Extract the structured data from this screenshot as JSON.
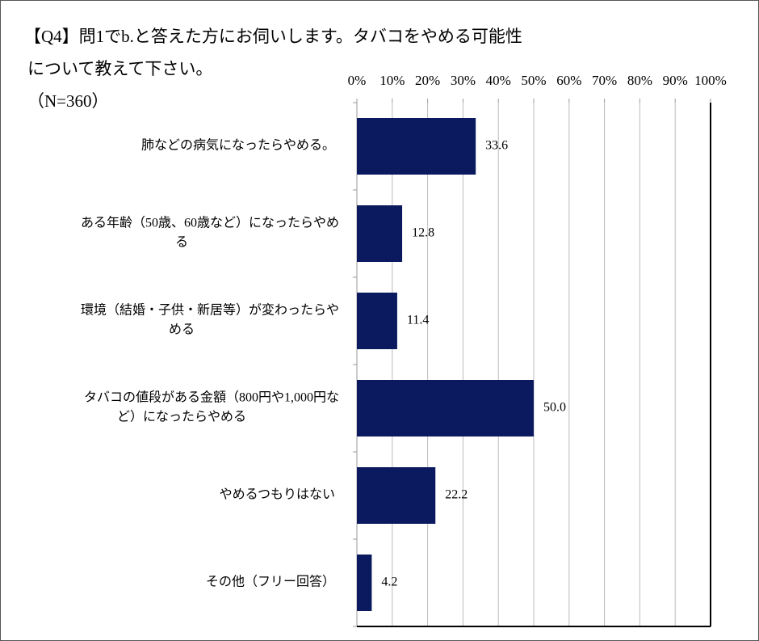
{
  "chart_data": {
    "type": "barh",
    "title": [
      "【Q4】問1でb.と答えた方にお伺いします。タバコをやめる可能性",
      "について教えて下さい。",
      "（N=360）"
    ],
    "categories": [
      [
        "肺などの病気になったらやめる。"
      ],
      [
        "ある年齢（50歳、60歳など）になったらやめ",
        "る"
      ],
      [
        "環境（結婚・子供・新居等）が変わったらや",
        "める"
      ],
      [
        "タバコの値段がある金額（800円や1,000円な",
        "ど）になったらやめる"
      ],
      [
        "やめるつもりはない"
      ],
      [
        "その他（フリー回答）"
      ]
    ],
    "values": [
      33.6,
      12.8,
      11.4,
      50.0,
      22.2,
      4.2
    ],
    "value_labels": [
      "33.6",
      "12.8",
      "11.4",
      "50.0",
      "22.2",
      "4.2"
    ],
    "color": "#0b1a5e",
    "xlim": [
      0,
      100
    ],
    "xticks": [
      {
        "value": 0,
        "label": "0%"
      },
      {
        "value": 10,
        "label": "10%"
      },
      {
        "value": 20,
        "label": "20%"
      },
      {
        "value": 30,
        "label": "30%"
      },
      {
        "value": 40,
        "label": "40%"
      },
      {
        "value": 50,
        "label": "50%"
      },
      {
        "value": 60,
        "label": "60%"
      },
      {
        "value": 70,
        "label": "70%"
      },
      {
        "value": 80,
        "label": "80%"
      },
      {
        "value": 90,
        "label": "90%"
      },
      {
        "value": 100,
        "label": "100%"
      }
    ],
    "grid": true
  }
}
